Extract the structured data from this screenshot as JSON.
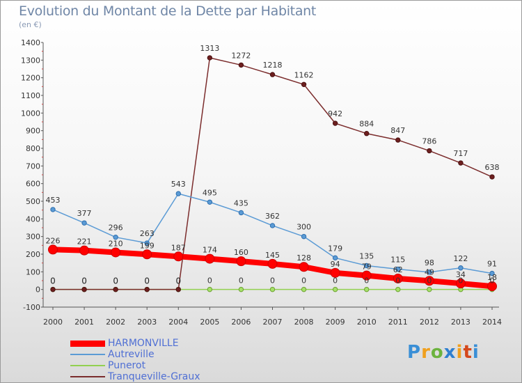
{
  "header": {
    "title": "Evolution du Montant de la Dette par Habitant",
    "subtitle": "(en €)"
  },
  "logo": {
    "text": "Proxiti"
  },
  "chart_data": {
    "type": "line",
    "title": "Evolution du Montant de la Dette par Habitant",
    "subtitle": "(en €)",
    "x": [
      2000,
      2001,
      2002,
      2003,
      2004,
      2005,
      2006,
      2007,
      2008,
      2009,
      2010,
      2011,
      2012,
      2013,
      2014
    ],
    "ylim": [
      -100,
      1400
    ],
    "yticks": [
      -100,
      0,
      100,
      200,
      300,
      400,
      500,
      600,
      700,
      800,
      900,
      1000,
      1100,
      1200,
      1300,
      1400
    ],
    "grid": false,
    "legend_position": "bottom-left",
    "series": [
      {
        "name": "HARMONVILLE",
        "color": "#ff0000",
        "values": [
          226,
          221,
          210,
          199,
          187,
          174,
          160,
          145,
          128,
          94,
          79,
          62,
          49,
          34,
          18
        ]
      },
      {
        "name": "Autreville",
        "color": "#5b9bd5",
        "values": [
          453,
          377,
          296,
          263,
          543,
          495,
          435,
          362,
          300,
          179,
          135,
          115,
          98,
          122,
          91
        ]
      },
      {
        "name": "Punerot",
        "color": "#92d050",
        "values": [
          0,
          0,
          0,
          0,
          0,
          0,
          0,
          0,
          0,
          0,
          0,
          0,
          0,
          0,
          0
        ]
      },
      {
        "name": "Tranqueville-Graux",
        "color": "#7b2c2c",
        "values": [
          0,
          0,
          0,
          0,
          0,
          1313,
          1272,
          1218,
          1162,
          942,
          884,
          847,
          786,
          717,
          638
        ]
      }
    ]
  }
}
